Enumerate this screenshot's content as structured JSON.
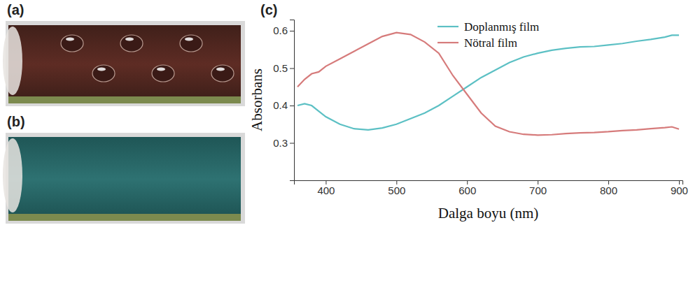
{
  "panel_labels": [
    "(a)",
    "(b)",
    "(c)"
  ],
  "chart_data": {
    "type": "line",
    "x_label": "Dalga boyu (nm)",
    "y_label": "Absorbans",
    "x": [
      360,
      370,
      380,
      390,
      400,
      420,
      440,
      460,
      480,
      500,
      520,
      540,
      560,
      580,
      600,
      620,
      640,
      660,
      680,
      700,
      720,
      740,
      760,
      780,
      800,
      820,
      840,
      860,
      880,
      890,
      900
    ],
    "series": [
      {
        "name": "Doplanmış film",
        "color": "#5cc0c4",
        "values": [
          0.4,
          0.405,
          0.4,
          0.385,
          0.37,
          0.35,
          0.338,
          0.335,
          0.34,
          0.35,
          0.365,
          0.38,
          0.4,
          0.425,
          0.45,
          0.475,
          0.495,
          0.515,
          0.53,
          0.54,
          0.548,
          0.553,
          0.557,
          0.558,
          0.562,
          0.566,
          0.572,
          0.577,
          0.583,
          0.588,
          0.588
        ]
      },
      {
        "name": "Nötral film",
        "color": "#d67b7b",
        "values": [
          0.45,
          0.47,
          0.485,
          0.49,
          0.505,
          0.525,
          0.545,
          0.565,
          0.585,
          0.595,
          0.59,
          0.57,
          0.54,
          0.48,
          0.43,
          0.38,
          0.345,
          0.33,
          0.323,
          0.321,
          0.322,
          0.325,
          0.327,
          0.328,
          0.33,
          0.333,
          0.335,
          0.338,
          0.341,
          0.343,
          0.337
        ]
      }
    ],
    "xlim": [
      355,
      905
    ],
    "ylim": [
      0.2,
      0.63
    ],
    "xticks": [
      400,
      500,
      600,
      700,
      800,
      900
    ],
    "yticks": [
      0.3,
      0.4,
      0.5,
      0.6
    ],
    "legend": "top"
  }
}
